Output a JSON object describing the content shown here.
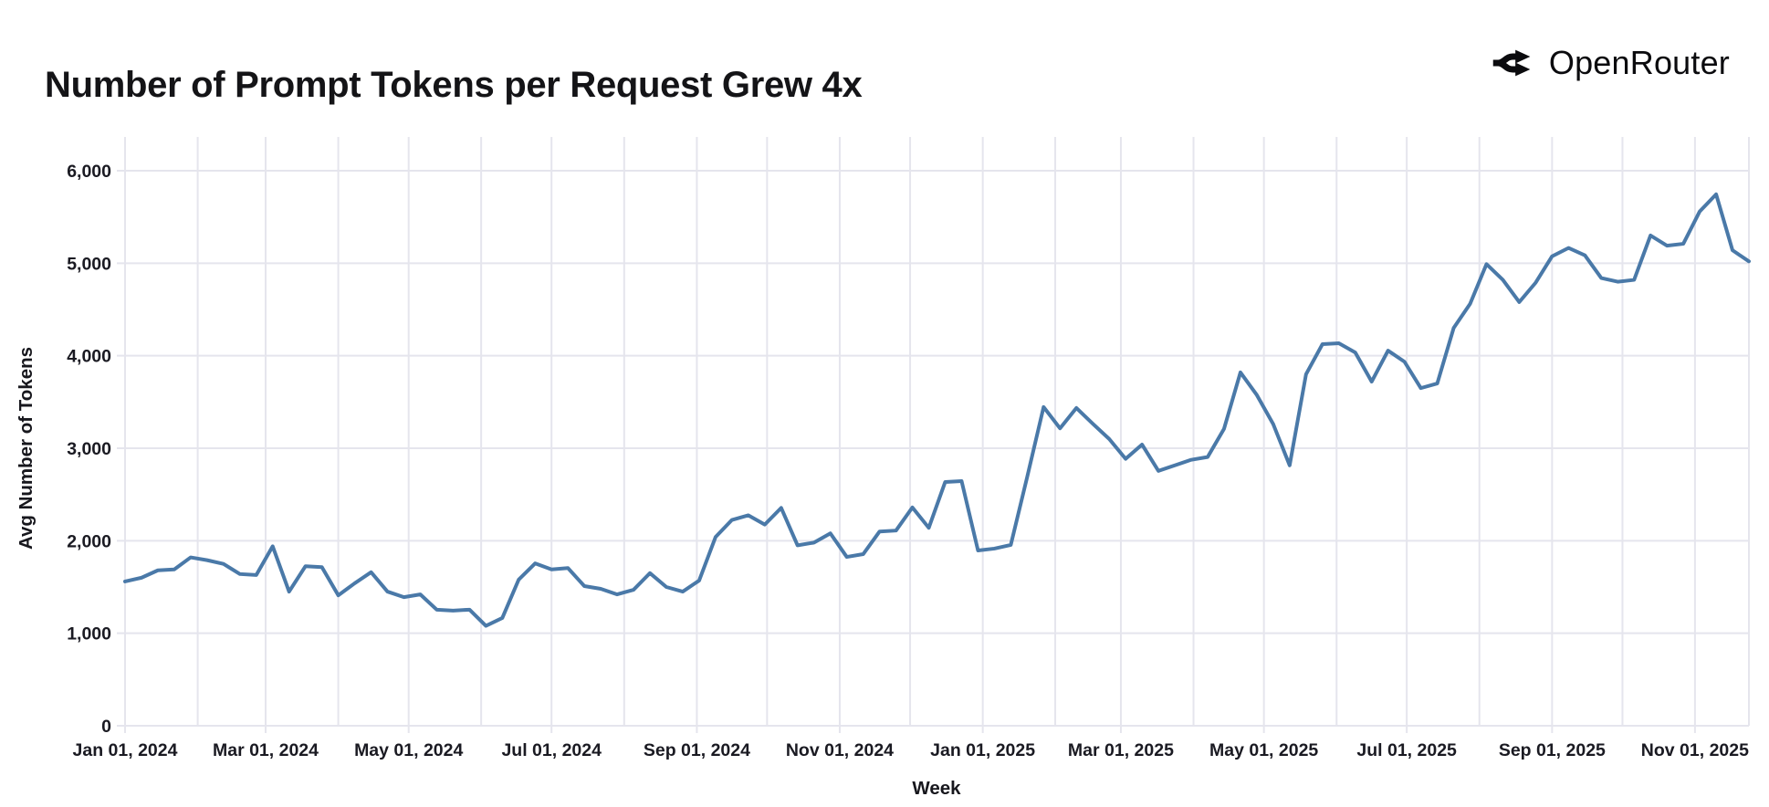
{
  "header": {
    "title": "Number of Prompt Tokens per Request Grew 4x",
    "brand": {
      "name": "OpenRouter",
      "icon": "openrouter-route-split-icon"
    }
  },
  "colors": {
    "background": "#ffffff",
    "grid": "#e5e5ed",
    "line": "#4a79a8",
    "tick_text": "#1a1a22",
    "title_text": "#141417",
    "brand_text": "#0b0b0e"
  },
  "chart_data": {
    "type": "line",
    "title": "Number of Prompt Tokens per Request Grew 4x",
    "xlabel": "Week",
    "ylabel": "Avg Number of Tokens",
    "x_interval": "weekly",
    "x_start": "Jan 01, 2024",
    "x_end": "Nov 2025",
    "ylim": [
      0,
      6000
    ],
    "grid": true,
    "legend": false,
    "y_ticks": [
      {
        "value": 0,
        "label": "0"
      },
      {
        "value": 1000,
        "label": "1,000"
      },
      {
        "value": 2000,
        "label": "2,000"
      },
      {
        "value": 3000,
        "label": "3,000"
      },
      {
        "value": 4000,
        "label": "4,000"
      },
      {
        "value": 5000,
        "label": "5,000"
      },
      {
        "value": 6000,
        "label": "6,000"
      }
    ],
    "x_ticks": [
      {
        "week": 0,
        "label": "Jan 01, 2024"
      },
      {
        "week": 8.57,
        "label": "Mar 01, 2024"
      },
      {
        "week": 17.29,
        "label": "May 01, 2024"
      },
      {
        "week": 26.0,
        "label": "Jul 01, 2024"
      },
      {
        "week": 34.86,
        "label": "Sep 01, 2024"
      },
      {
        "week": 43.57,
        "label": "Nov 01, 2024"
      },
      {
        "week": 52.29,
        "label": "Jan 01, 2025"
      },
      {
        "week": 60.71,
        "label": "Mar 01, 2025"
      },
      {
        "week": 69.43,
        "label": "May 01, 2025"
      },
      {
        "week": 78.14,
        "label": "Jul 01, 2025"
      },
      {
        "week": 87.0,
        "label": "Sep 01, 2025"
      },
      {
        "week": 95.71,
        "label": "Nov 01, 2025"
      }
    ],
    "x_minor_gridline_weeks": [
      4.43,
      13.0,
      21.71,
      30.43,
      39.14,
      47.86,
      56.71,
      65.14,
      73.86,
      82.57,
      91.29,
      99.0
    ],
    "values": [
      1560,
      1600,
      1680,
      1690,
      1820,
      1790,
      1750,
      1640,
      1630,
      1940,
      1450,
      1725,
      1715,
      1410,
      1540,
      1660,
      1450,
      1390,
      1420,
      1255,
      1245,
      1255,
      1080,
      1165,
      1580,
      1755,
      1690,
      1705,
      1510,
      1480,
      1420,
      1470,
      1650,
      1500,
      1450,
      1570,
      2040,
      2225,
      2275,
      2175,
      2355,
      1950,
      1980,
      2080,
      1825,
      1855,
      2100,
      2110,
      2360,
      2140,
      2635,
      2645,
      1895,
      1915,
      1955,
      2690,
      3445,
      3215,
      3435,
      3265,
      3100,
      2885,
      3040,
      2755,
      2815,
      2875,
      2905,
      3210,
      3820,
      3575,
      3260,
      2815,
      3800,
      4125,
      4135,
      4035,
      3720,
      4055,
      3935,
      3650,
      3700,
      4300,
      4560,
      4990,
      4820,
      4580,
      4790,
      5075,
      5165,
      5085,
      4840,
      4800,
      4820,
      5300,
      5190,
      5210,
      5560,
      5745,
      5140,
      5020
    ]
  }
}
